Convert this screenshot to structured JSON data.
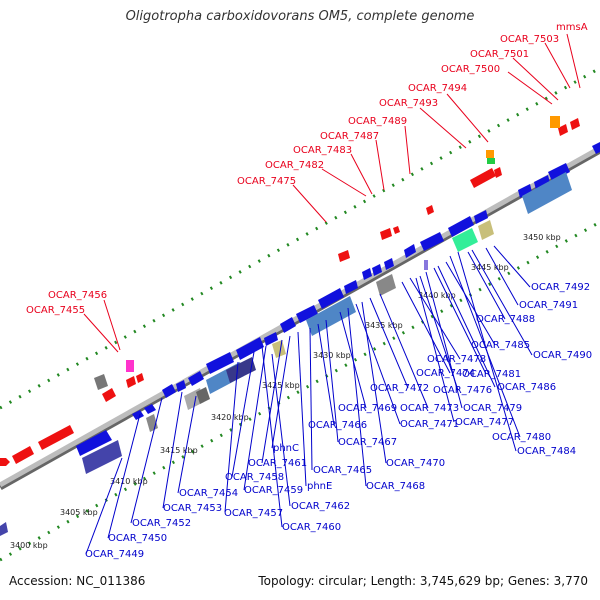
{
  "title": "Oligotropha carboxidovorans OM5, complete genome",
  "footer": {
    "accession": "Accession: NC_011386",
    "topology": "Topology: circular; Length: 3,745,629 bp; Genes: 3,770"
  },
  "colors": {
    "forward_label": "#e8001c",
    "reverse_label": "#0000cc",
    "forward_gene": "#ee1111",
    "reverse_gene": "#1111dd",
    "backbone": "#999999",
    "ticks": "#228822"
  },
  "scale_ticks": [
    "3400 kbp",
    "3405 kbp",
    "3410 kbp",
    "3415 kbp",
    "3420 kbp",
    "3425 kbp",
    "3430 kbp",
    "3435 kbp",
    "3440 kbp",
    "3445 kbp",
    "3450 kbp"
  ],
  "top_labels": [
    "mmsA",
    "OCAR_7503",
    "OCAR_7501",
    "OCAR_7500",
    "OCAR_7494",
    "OCAR_7493",
    "OCAR_7489",
    "OCAR_7487",
    "OCAR_7483",
    "OCAR_7482",
    "OCAR_7475",
    "OCAR_7456",
    "OCAR_7455"
  ],
  "bottom_labels": [
    "OCAR_7492",
    "OCAR_7491",
    "OCAR_7488",
    "OCAR_7490",
    "OCAR_7485",
    "OCAR_7478",
    "OCAR_7481",
    "OCAR_7474",
    "OCAR_7486",
    "OCAR_7472",
    "OCAR_7476",
    "OCAR_7473",
    "OCAR_7479",
    "OCAR_7469",
    "OCAR_7477",
    "OCAR_7471",
    "OCAR_7466",
    "OCAR_7480",
    "OCAR_7467",
    "phnC",
    "OCAR_7484",
    "OCAR_7461",
    "OCAR_7465",
    "OCAR_7470",
    "OCAR_7458",
    "phnE",
    "OCAR_7468",
    "OCAR_7459",
    "OCAR_7454",
    "OCAR_7462",
    "OCAR_7453",
    "OCAR_7457",
    "OCAR_7452",
    "OCAR_7460",
    "OCAR_7450",
    "OCAR_7449"
  ]
}
